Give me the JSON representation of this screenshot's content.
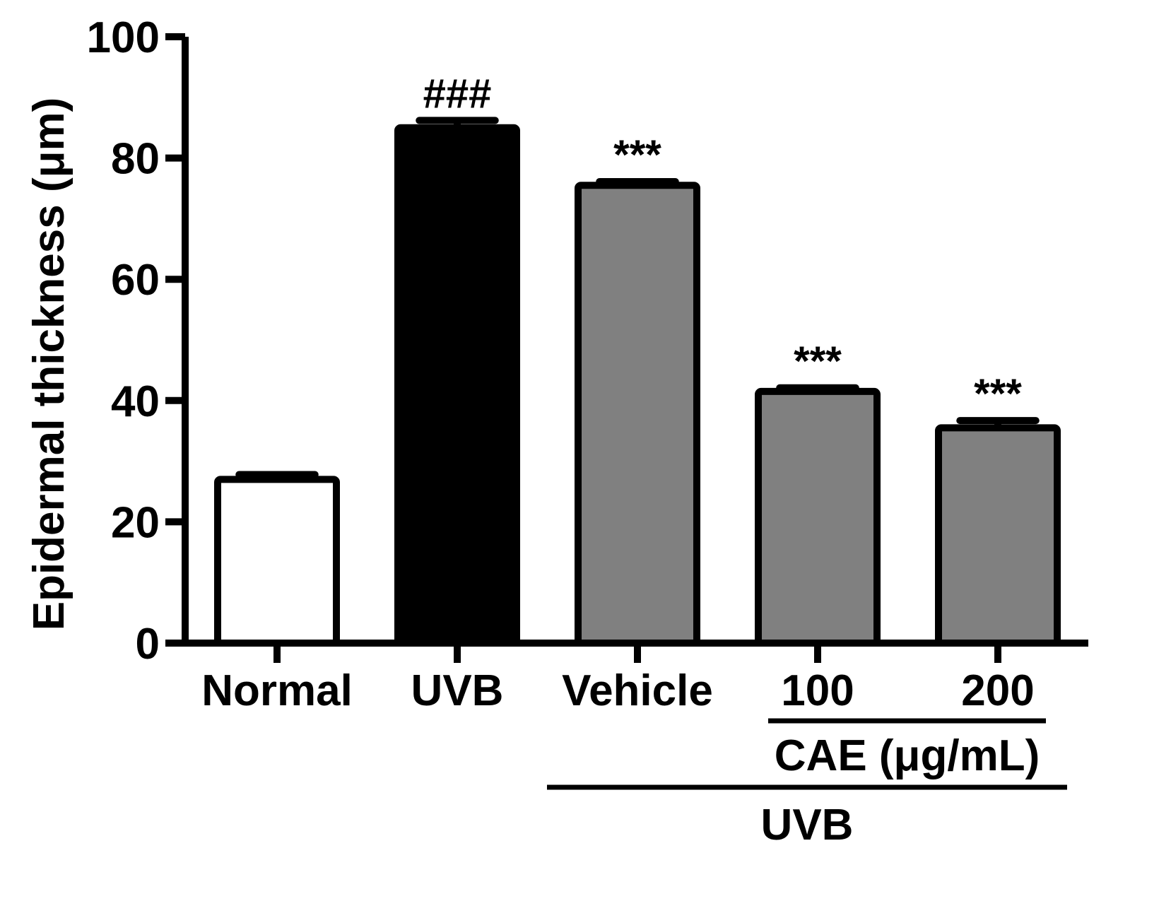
{
  "chart_data": {
    "type": "bar",
    "title": "",
    "xlabel": "",
    "ylabel": "Epidermal thickness (μm)",
    "ylim": [
      0,
      100
    ],
    "yticks": [
      0,
      20,
      40,
      60,
      80,
      100
    ],
    "ytick_labels": [
      "0",
      "20",
      "40",
      "60",
      "80",
      "100"
    ],
    "categories": [
      "Normal",
      "UVB",
      "Vehicle",
      "100",
      "200"
    ],
    "values": [
      27,
      85,
      75.5,
      41.5,
      35.5
    ],
    "errors": [
      0.8,
      1.2,
      0.6,
      0.6,
      1.2
    ],
    "significance": [
      "",
      "###",
      "***",
      "***",
      "***"
    ],
    "bar_colors": [
      "#ffffff",
      "#000000",
      "#808080",
      "#808080",
      "#808080"
    ],
    "grid": false,
    "groups": [
      {
        "label": "CAE (μg/mL)",
        "from": 3,
        "to": 4,
        "level": 1
      },
      {
        "label": "UVB",
        "from": 2,
        "to": 4,
        "level": 2
      }
    ]
  }
}
